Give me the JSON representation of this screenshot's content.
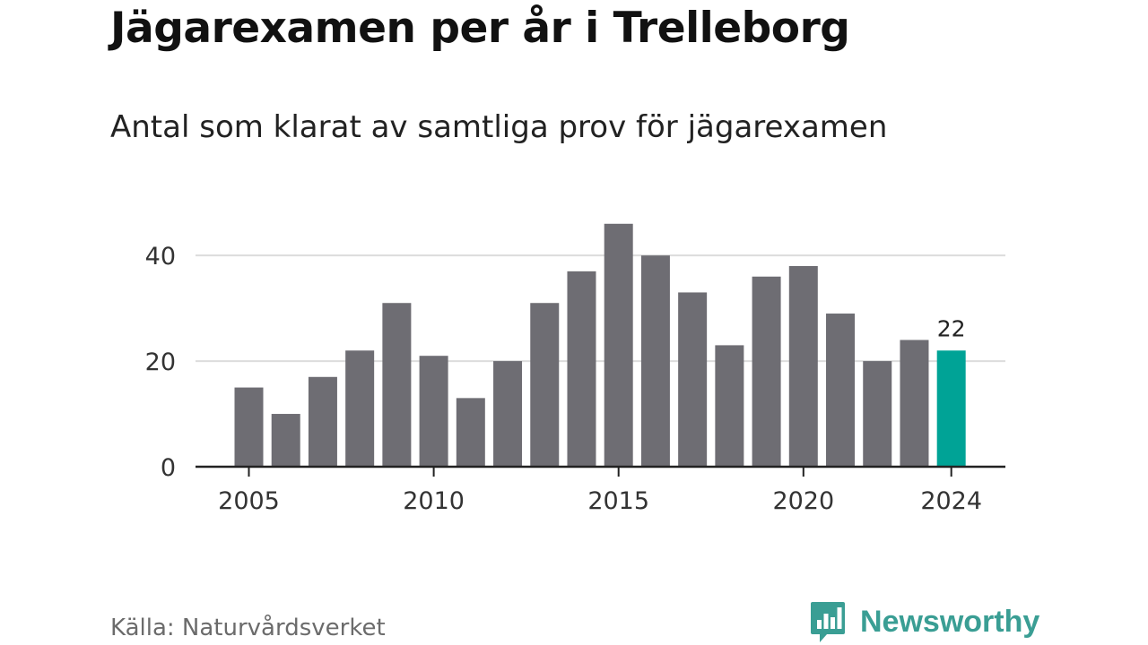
{
  "title": "Jägarexamen per år i Trelleborg",
  "subtitle": "Antal som klarat av samtliga prov för jägarexamen",
  "source": "Källa: Naturvårdsverket",
  "brand": {
    "name": "Newsworthy",
    "color": "#3a9e94"
  },
  "colors": {
    "bar": "#6e6d73",
    "highlight": "#00a396",
    "grid": "#dcdcdc",
    "axis": "#222222"
  },
  "chart_data": {
    "type": "bar",
    "categories": [
      "2005",
      "2006",
      "2007",
      "2008",
      "2009",
      "2010",
      "2011",
      "2012",
      "2013",
      "2014",
      "2015",
      "2016",
      "2017",
      "2018",
      "2019",
      "2020",
      "2021",
      "2022",
      "2023",
      "2024"
    ],
    "values": [
      15,
      10,
      17,
      22,
      31,
      21,
      13,
      20,
      31,
      37,
      46,
      40,
      33,
      23,
      36,
      38,
      29,
      20,
      24,
      22
    ],
    "highlight_category": "2024",
    "annotations": [
      {
        "category": "2024",
        "text": "22"
      }
    ],
    "x_tick_labels": [
      "2005",
      "2010",
      "2015",
      "2020",
      "2024"
    ],
    "y_ticks": [
      0,
      20,
      40
    ],
    "ylim": [
      0,
      48
    ],
    "grid": true,
    "xlabel": "",
    "ylabel": ""
  }
}
